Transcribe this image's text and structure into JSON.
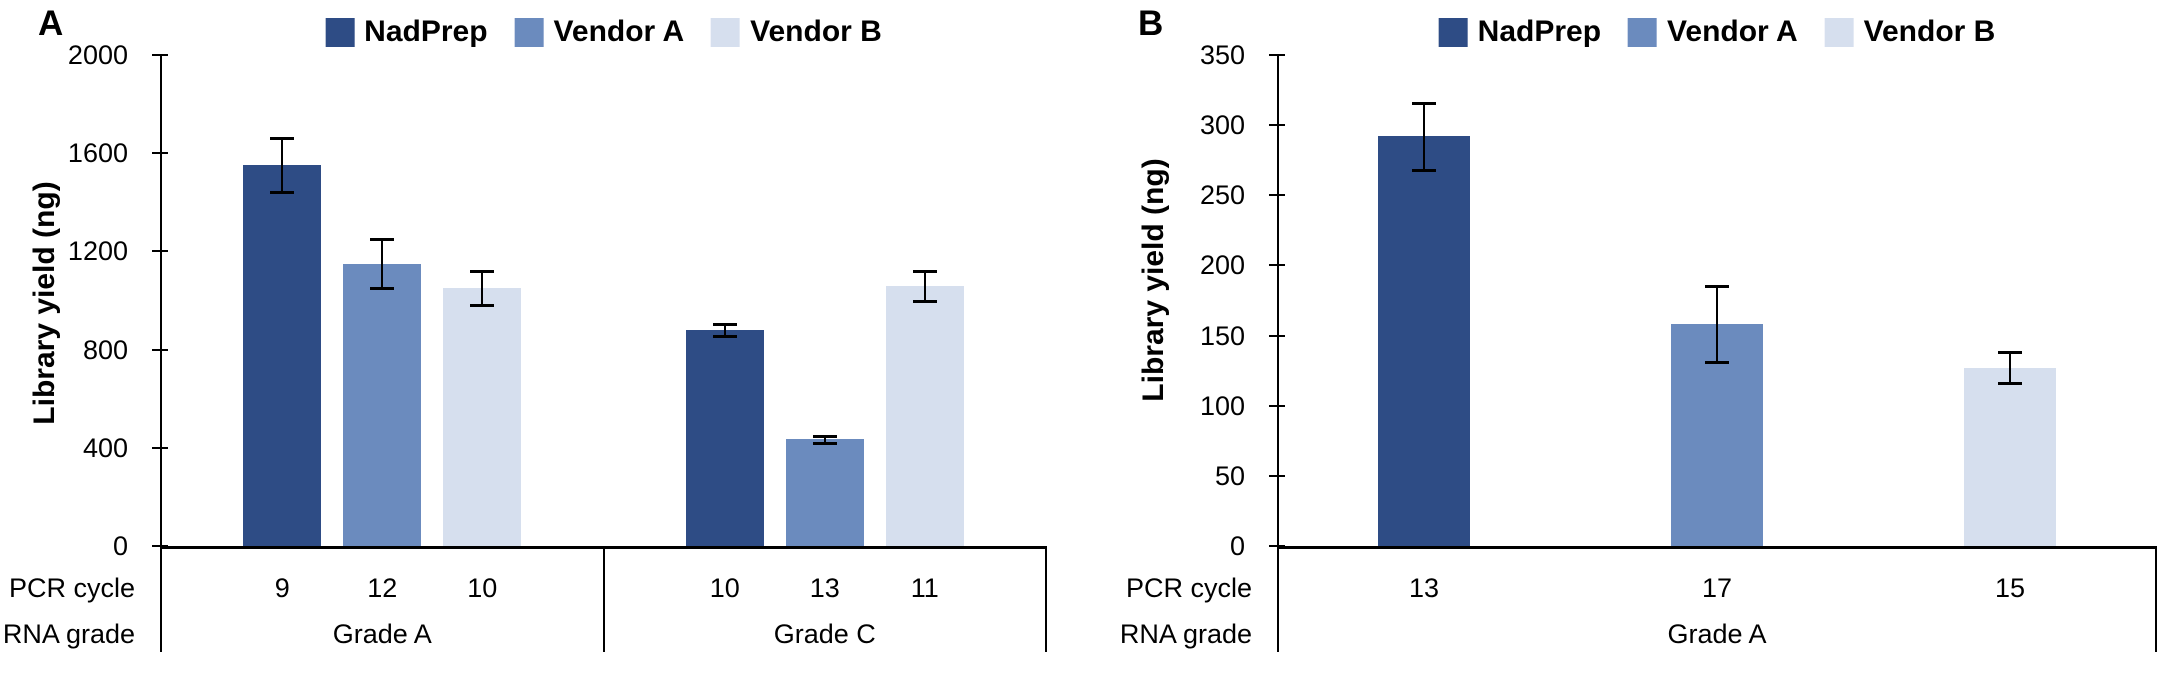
{
  "legend": {
    "items": [
      {
        "label": "NadPrep",
        "color": "#2e4c85"
      },
      {
        "label": "Vendor A",
        "color": "#6b8bbe"
      },
      {
        "label": "Vendor B",
        "color": "#d6dfee"
      }
    ]
  },
  "chart_data": [
    {
      "type": "bar",
      "panel": "A",
      "title": "",
      "ylabel": "Library yield (ng)",
      "ylim": [
        0,
        2000
      ],
      "ytick_step": 400,
      "grid": false,
      "legend_position": "top-center",
      "error_bars": true,
      "series": [
        "NadPrep",
        "Vendor A",
        "Vendor B"
      ],
      "x_row_labels": [
        "PCR cycle",
        "RNA grade"
      ],
      "groups": [
        {
          "rna_grade": "Grade A",
          "pcr_cycles": [
            "9",
            "12",
            "10"
          ],
          "values": [
            1550,
            1150,
            1050
          ],
          "errors": [
            110,
            100,
            70
          ]
        },
        {
          "rna_grade": "Grade C",
          "pcr_cycles": [
            "10",
            "13",
            "11"
          ],
          "values": [
            880,
            435,
            1060
          ],
          "errors": [
            25,
            15,
            60
          ]
        }
      ]
    },
    {
      "type": "bar",
      "panel": "B",
      "title": "",
      "ylabel": "Library yield (ng)",
      "ylim": [
        0,
        350
      ],
      "ytick_step": 50,
      "grid": false,
      "legend_position": "top-center",
      "error_bars": true,
      "series": [
        "NadPrep",
        "Vendor A",
        "Vendor B"
      ],
      "x_row_labels": [
        "PCR cycle",
        "RNA grade"
      ],
      "groups": [
        {
          "rna_grade": "Grade A",
          "pcr_cycles": [
            "13",
            "17",
            "15"
          ],
          "values": [
            292,
            158,
            127
          ],
          "errors": [
            24,
            27,
            11
          ]
        }
      ]
    }
  ]
}
